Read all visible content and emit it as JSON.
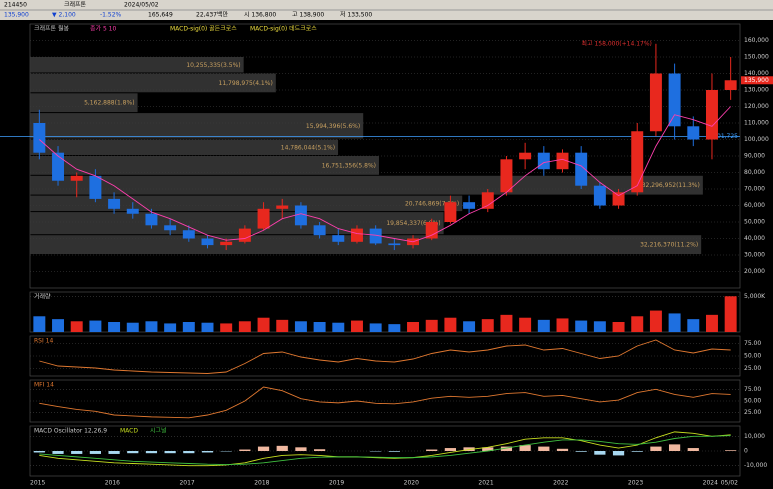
{
  "toolbar": {
    "row1": [
      "214450",
      "크래프톤",
      "2024/05/02"
    ],
    "row2": [
      "135,900",
      "▼ 2,100",
      "-1.52%",
      "165,649",
      "22,437백만",
      "시 136,800",
      "고 138,900",
      "저 133,500"
    ]
  },
  "chart_data": [
    {
      "type": "candlestick",
      "title": "크래프톤 월봉",
      "legend": [
        "종가 5 10",
        "MACD-sig(0) 골든크로스",
        "MACD-sig(0) 데드크로스"
      ],
      "categories": [
        "2015",
        null,
        null,
        null,
        "2016",
        null,
        null,
        null,
        "2017",
        null,
        null,
        null,
        "2018",
        null,
        null,
        null,
        "2019",
        null,
        null,
        null,
        "2020",
        null,
        null,
        null,
        "2021",
        null,
        null,
        null,
        "2022",
        null,
        null,
        null,
        "2023",
        null,
        null,
        null,
        "2024",
        null
      ],
      "end_label": "05/02",
      "open": [
        110000,
        92000,
        75000,
        78000,
        64000,
        58000,
        55000,
        48000,
        45000,
        40000,
        36000,
        38000,
        46000,
        58000,
        60000,
        48000,
        42000,
        38000,
        46000,
        37000,
        36000,
        40000,
        50000,
        62000,
        58000,
        68000,
        88000,
        92000,
        82000,
        92000,
        72000,
        60000,
        68000,
        105000,
        140000,
        108000,
        100000,
        130000
      ],
      "high": [
        118000,
        96000,
        80000,
        82000,
        68000,
        62000,
        58000,
        52000,
        48000,
        42000,
        40000,
        48000,
        62000,
        64000,
        62000,
        50000,
        46000,
        48000,
        48000,
        40000,
        42000,
        52000,
        66000,
        66000,
        70000,
        90000,
        98000,
        96000,
        94000,
        96000,
        74000,
        70000,
        110000,
        158000,
        146000,
        114000,
        140000,
        150000
      ],
      "low": [
        88000,
        72000,
        65000,
        62000,
        55000,
        52000,
        46000,
        42000,
        38000,
        34000,
        33000,
        37000,
        45000,
        52000,
        46000,
        40000,
        36000,
        37000,
        36000,
        33000,
        34000,
        39000,
        49000,
        55000,
        56000,
        66000,
        82000,
        78000,
        80000,
        70000,
        58000,
        58000,
        66000,
        102000,
        100000,
        96000,
        88000,
        124000
      ],
      "close": [
        92000,
        75000,
        78000,
        64000,
        58000,
        55000,
        48000,
        45000,
        40000,
        36000,
        38000,
        46000,
        58000,
        60000,
        48000,
        42000,
        38000,
        46000,
        37000,
        36000,
        40000,
        50000,
        62000,
        58000,
        68000,
        88000,
        92000,
        82000,
        92000,
        72000,
        60000,
        68000,
        105000,
        140000,
        108000,
        100000,
        130000,
        135900
      ],
      "series": [
        {
          "name": "5",
          "color": "#ff3fae",
          "values": [
            100000,
            90000,
            82000,
            78000,
            72000,
            64000,
            56000,
            52000,
            47000,
            42000,
            39000,
            40000,
            45000,
            52000,
            55000,
            52000,
            46000,
            43000,
            42000,
            40000,
            38000,
            42000,
            48000,
            55000,
            60000,
            68000,
            78000,
            86000,
            88000,
            84000,
            74000,
            66000,
            72000,
            96000,
            115000,
            112000,
            108000,
            120000
          ]
        }
      ],
      "up_color": "#e8281e",
      "down_color": "#1e6fe0",
      "ylim": [
        10000,
        170000
      ],
      "yticks": [
        {
          "value": 20000,
          "label": "20,000"
        },
        {
          "value": 30000,
          "label": "30,000"
        },
        {
          "value": 40000,
          "label": "40,000"
        },
        {
          "value": 50000,
          "label": "50,000"
        },
        {
          "value": 60000,
          "label": "60,000"
        },
        {
          "value": 70000,
          "label": "70,000"
        },
        {
          "value": 80000,
          "label": "80,000"
        },
        {
          "value": 90000,
          "label": "90,000"
        },
        {
          "value": 100000,
          "label": "100,000"
        },
        {
          "value": 110000,
          "label": "110,000"
        },
        {
          "value": 120000,
          "label": "120,000"
        },
        {
          "value": 130000,
          "label": "130,000"
        },
        {
          "value": 140000,
          "label": "140,000"
        },
        {
          "value": 150000,
          "label": "150,000"
        },
        {
          "value": 160000,
          "label": "160,000"
        }
      ],
      "hline": {
        "value": 101725,
        "label": "101,725"
      },
      "last_label": "135,900",
      "max_note": "최고 158,000(+14.17%)",
      "profile": [
        {
          "low": 140000,
          "high": 150000,
          "volume": 10255335,
          "label": "10,255,335(3.5%)"
        },
        {
          "low": 128000,
          "high": 140000,
          "volume": 11798975,
          "label": "11,798,975(4.1%)"
        },
        {
          "low": 116000,
          "high": 128000,
          "volume": 5162888,
          "label": "5,162,888(1.8%)"
        },
        {
          "low": 100000,
          "high": 116000,
          "volume": 15994396,
          "label": "15,994,396(5.6%)"
        },
        {
          "low": 90000,
          "high": 100000,
          "volume": 14786044,
          "label": "14,786,044(5.1%)"
        },
        {
          "low": 78000,
          "high": 90000,
          "volume": 16751356,
          "label": "16,751,356(5.8%)"
        },
        {
          "low": 66000,
          "high": 78000,
          "volume": 32296952,
          "label": "32,296,952(11.3%)"
        },
        {
          "low": 56000,
          "high": 66000,
          "volume": 20746869,
          "label": "20,746,869(7.2%)"
        },
        {
          "low": 42000,
          "high": 56000,
          "volume": 19854337,
          "label": "19,854,337(6.9%)"
        },
        {
          "low": 30000,
          "high": 42000,
          "volume": 32216370,
          "label": "32,216,370(11.2%)"
        }
      ],
      "grid": true
    },
    {
      "type": "volume",
      "title": "거래량",
      "values": [
        2200,
        1800,
        1500,
        1600,
        1400,
        1300,
        1500,
        1200,
        1400,
        1300,
        1200,
        1500,
        2000,
        1700,
        1500,
        1400,
        1300,
        1600,
        1200,
        1100,
        1400,
        1700,
        2000,
        1500,
        1800,
        2400,
        2000,
        1700,
        1900,
        1600,
        1500,
        1400,
        2200,
        3000,
        2600,
        1800,
        2400,
        5000
      ],
      "ylim": [
        0,
        5600
      ],
      "yticks": [
        {
          "value": 5000,
          "label": "5,000K"
        }
      ],
      "grid": true
    },
    {
      "type": "line",
      "series": [
        {
          "name": "RSI 14",
          "color": "#e07830",
          "values": [
            40,
            30,
            28,
            26,
            22,
            20,
            18,
            17,
            16,
            15,
            18,
            35,
            55,
            58,
            48,
            42,
            38,
            45,
            40,
            38,
            44,
            55,
            62,
            58,
            62,
            70,
            72,
            62,
            65,
            55,
            45,
            50,
            70,
            82,
            62,
            56,
            64,
            62
          ]
        }
      ],
      "ylim": [
        10,
        90
      ],
      "yticks": [
        {
          "value": 25,
          "label": "25.00"
        },
        {
          "value": 50,
          "label": "50.00"
        },
        {
          "value": 75,
          "label": "75.00"
        }
      ],
      "grid": true
    },
    {
      "type": "line",
      "series": [
        {
          "name": "MFI 14",
          "color": "#e07830",
          "values": [
            45,
            38,
            32,
            28,
            20,
            18,
            16,
            15,
            14,
            20,
            30,
            50,
            80,
            72,
            55,
            48,
            46,
            50,
            45,
            44,
            48,
            56,
            60,
            58,
            60,
            66,
            68,
            60,
            62,
            55,
            48,
            52,
            68,
            75,
            64,
            58,
            66,
            64
          ]
        }
      ],
      "ylim": [
        5,
        95
      ],
      "yticks": [
        {
          "value": 25,
          "label": "25.00"
        },
        {
          "value": 50,
          "label": "50.00"
        },
        {
          "value": 75,
          "label": "75.00"
        }
      ],
      "grid": true
    },
    {
      "type": "macd",
      "title": "MACD Oscillator 12,26,9",
      "oscillator": [
        -1000,
        -2000,
        -2000,
        -2000,
        -2000,
        -1500,
        -1500,
        -1500,
        -1500,
        -1000,
        -300,
        1000,
        3000,
        3500,
        2500,
        1200,
        0,
        0,
        -300,
        -500,
        0,
        1000,
        2000,
        2500,
        2500,
        3000,
        4000,
        3000,
        1500,
        -500,
        -2500,
        -3000,
        -500,
        3000,
        4500,
        2000,
        0,
        500
      ],
      "series": [
        {
          "name": "MACD",
          "color": "#c8e020",
          "values": [
            -3000,
            -5000,
            -6000,
            -7000,
            -8000,
            -8500,
            -9000,
            -9500,
            -10000,
            -10000,
            -9500,
            -8000,
            -5000,
            -3000,
            -2500,
            -3000,
            -4000,
            -4000,
            -4500,
            -5000,
            -4500,
            -3000,
            -1000,
            1000,
            2500,
            5000,
            8000,
            9000,
            9000,
            7000,
            4000,
            2000,
            4000,
            9000,
            13000,
            12000,
            10000,
            11000
          ]
        },
        {
          "name": "시그널",
          "color": "#40c040",
          "values": [
            -2000,
            -3000,
            -4000,
            -5000,
            -6000,
            -7000,
            -7500,
            -8000,
            -8500,
            -9000,
            -9200,
            -9000,
            -8000,
            -6500,
            -5000,
            -4200,
            -4000,
            -4000,
            -4200,
            -4500,
            -4500,
            -4000,
            -3000,
            -1500,
            0,
            2000,
            4000,
            6000,
            7500,
            7500,
            6500,
            5000,
            4500,
            6000,
            8500,
            10000,
            10000,
            10500
          ]
        }
      ],
      "ylim": [
        -17000,
        17000
      ],
      "yticks": [
        {
          "value": -10000,
          "label": "-10,000"
        },
        {
          "value": 0,
          "label": "0"
        },
        {
          "value": 10000,
          "label": "10,000"
        }
      ],
      "grid": true
    }
  ]
}
